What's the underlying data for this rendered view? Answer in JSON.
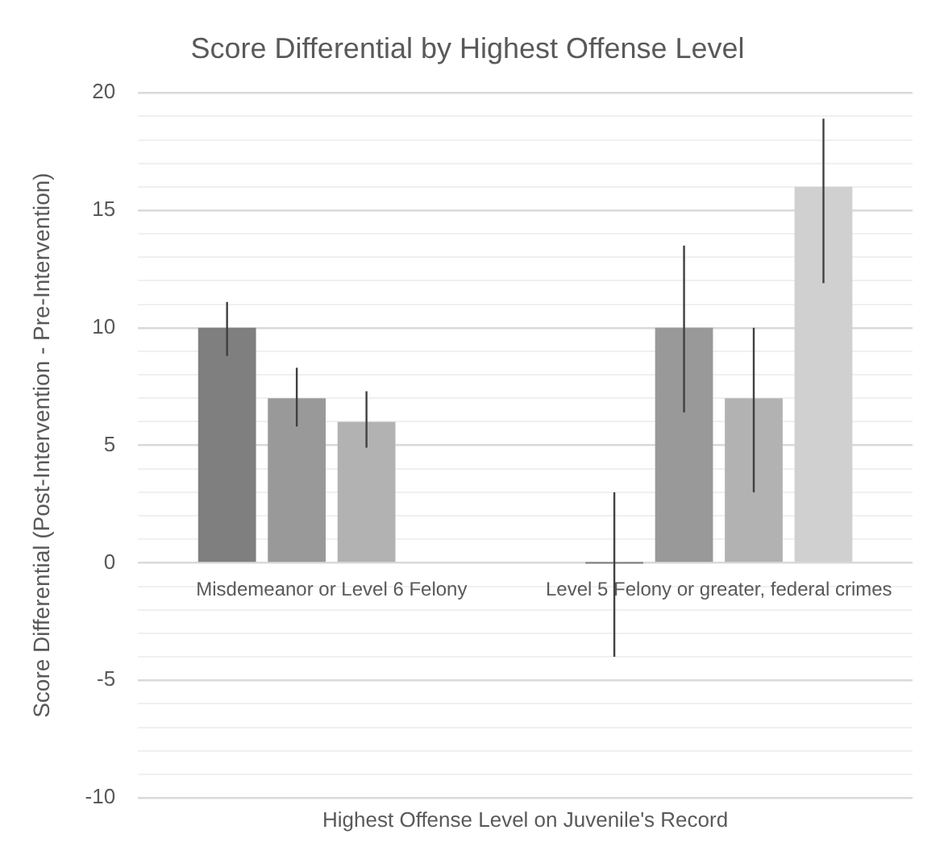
{
  "chart_data": {
    "type": "bar",
    "title": "Score Differential by Highest Offense Level",
    "xlabel": "Highest Offense Level on Juvenile's Record",
    "ylabel": "Score Differential (Post-Intervention - Pre-Intervention)",
    "categories": [
      "Misdemeanor or Level 6 Felony",
      "Level 5 Felony or greater, federal crimes"
    ],
    "series": [
      {
        "color": "#7f7f7f",
        "values": [
          10,
          0
        ],
        "errors": [
          [
            8.8,
            11.1
          ],
          [
            -4,
            3
          ]
        ]
      },
      {
        "color": "#999999",
        "values": [
          7,
          10
        ],
        "errors": [
          [
            5.8,
            8.3
          ],
          [
            6.4,
            13.5
          ]
        ]
      },
      {
        "color": "#b2b2b2",
        "values": [
          6,
          7
        ],
        "errors": [
          [
            4.9,
            7.3
          ],
          [
            3,
            10
          ]
        ]
      },
      {
        "color": "#d0d0d0",
        "values": [
          null,
          16
        ],
        "errors": [
          null,
          [
            11.9,
            18.9
          ]
        ]
      }
    ],
    "ylim": [
      -10,
      20
    ],
    "yticks": [
      -10,
      {
        "value": -9,
        "label": null
      },
      {
        "value": -8,
        "label": null
      },
      {
        "value": -7,
        "label": null
      },
      {
        "value": -6,
        "label": null
      },
      -5,
      {
        "value": -4,
        "label": null
      },
      {
        "value": -3,
        "label": null
      },
      {
        "value": -2,
        "label": null
      },
      {
        "value": -1,
        "label": null
      },
      0,
      {
        "value": 1,
        "label": null
      },
      {
        "value": 2,
        "label": null
      },
      {
        "value": 3,
        "label": null
      },
      {
        "value": 4,
        "label": null
      },
      5,
      {
        "value": 6,
        "label": null
      },
      {
        "value": 7,
        "label": null
      },
      {
        "value": 8,
        "label": null
      },
      {
        "value": 9,
        "label": null
      },
      10,
      {
        "value": 11,
        "label": null
      },
      {
        "value": 12,
        "label": null
      },
      {
        "value": 13,
        "label": null
      },
      {
        "value": 14,
        "label": null
      },
      15,
      {
        "value": 16,
        "label": null
      },
      {
        "value": 17,
        "label": null
      },
      {
        "value": 18,
        "label": null
      },
      {
        "value": 19,
        "label": null
      },
      20
    ],
    "grid": "y",
    "legend": false
  }
}
